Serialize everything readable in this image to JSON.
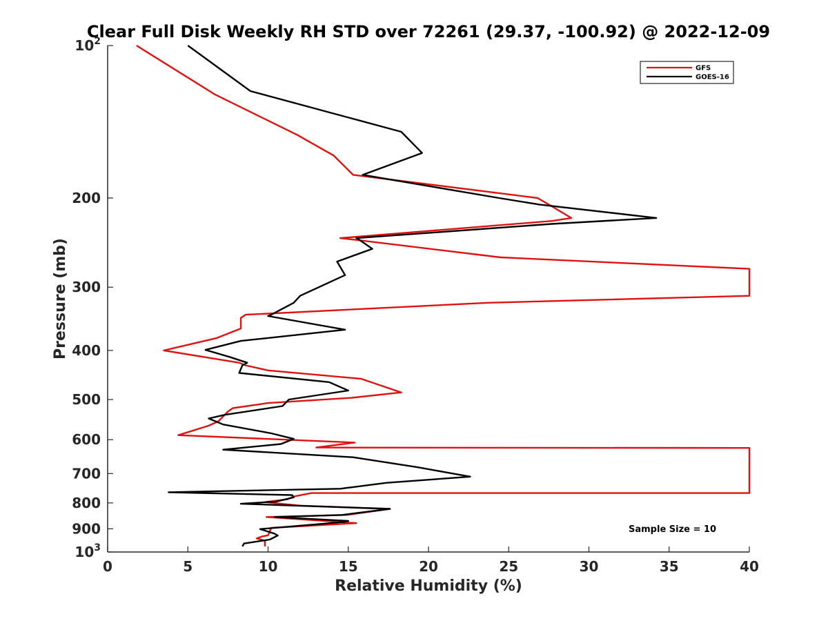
{
  "chart_data": {
    "type": "line",
    "title": "Clear Full Disk Weekly RH STD over 72261 (29.37, -100.92) @ 2022-12-09",
    "xlabel": "Relative Humidity (%)",
    "ylabel": "Pressure (mb)",
    "xlim": [
      0,
      40
    ],
    "ylim": [
      100,
      1000
    ],
    "y_scale": "log",
    "y_reversed": true,
    "x_ticks": [
      0,
      5,
      10,
      15,
      20,
      25,
      30,
      35,
      40
    ],
    "x_tick_labels": [
      "0",
      "5",
      "10",
      "15",
      "20",
      "25",
      "30",
      "35",
      "40"
    ],
    "y_ticks": [
      100,
      200,
      300,
      400,
      500,
      600,
      700,
      800,
      900,
      1000
    ],
    "y_tick_labels": [
      {
        "base": "10",
        "exp": "2"
      },
      {
        "base": "200",
        "exp": ""
      },
      {
        "base": "300",
        "exp": ""
      },
      {
        "base": "400",
        "exp": ""
      },
      {
        "base": "500",
        "exp": ""
      },
      {
        "base": "600",
        "exp": ""
      },
      {
        "base": "700",
        "exp": ""
      },
      {
        "base": "800",
        "exp": ""
      },
      {
        "base": "900",
        "exp": ""
      },
      {
        "base": "10",
        "exp": "3"
      }
    ],
    "grid": false,
    "legend_position": "top-right",
    "annotation": "Sample Size = 10",
    "series": [
      {
        "name": "GFS",
        "color": "#e0110f",
        "points": [
          [
            1.8,
            100
          ],
          [
            6.7,
            125
          ],
          [
            11.8,
            150
          ],
          [
            14.1,
            165
          ],
          [
            15.3,
            180
          ],
          [
            26.8,
            200
          ],
          [
            27.5,
            206
          ],
          [
            28.9,
            219
          ],
          [
            27.7,
            222
          ],
          [
            14.5,
            240
          ],
          [
            15.5,
            242
          ],
          [
            24.5,
            262
          ],
          [
            40.0,
            276
          ],
          [
            40.0,
            276
          ],
          [
            40.0,
            312
          ],
          [
            23.7,
            322
          ],
          [
            8.6,
            340
          ],
          [
            8.3,
            345
          ],
          [
            8.3,
            362
          ],
          [
            6.8,
            378
          ],
          [
            3.5,
            400
          ],
          [
            8.2,
            423
          ],
          [
            8.6,
            428
          ],
          [
            10.0,
            438
          ],
          [
            15.8,
            455
          ],
          [
            18.3,
            484
          ],
          [
            15.2,
            496
          ],
          [
            10.0,
            508
          ],
          [
            7.8,
            520
          ],
          [
            7.5,
            528
          ],
          [
            6.9,
            552
          ],
          [
            6.3,
            563
          ],
          [
            4.4,
            588
          ],
          [
            15.4,
            608
          ],
          [
            13.0,
            622
          ],
          [
            40.0,
            623
          ],
          [
            40.0,
            623
          ],
          [
            40.0,
            765
          ],
          [
            12.7,
            765
          ],
          [
            11.6,
            777
          ],
          [
            11.2,
            787
          ],
          [
            9.8,
            797
          ],
          [
            12.0,
            810
          ],
          [
            17.6,
            822
          ],
          [
            14.9,
            845
          ],
          [
            9.9,
            853
          ],
          [
            13.5,
            868
          ],
          [
            15.5,
            877
          ],
          [
            10.2,
            896
          ],
          [
            10.0,
            927
          ],
          [
            9.6,
            932
          ],
          [
            9.3,
            940
          ],
          [
            9.8,
            950
          ],
          [
            9.8,
            967
          ],
          [
            9.8,
            975
          ]
        ]
      },
      {
        "name": "GOES-16",
        "color": "#000000",
        "points": [
          [
            5.0,
            100
          ],
          [
            8.9,
            123
          ],
          [
            18.3,
            148
          ],
          [
            19.6,
            163
          ],
          [
            15.9,
            180
          ],
          [
            24.4,
            200
          ],
          [
            26.9,
            206
          ],
          [
            34.2,
            219
          ],
          [
            27.7,
            225
          ],
          [
            15.5,
            240
          ],
          [
            15.7,
            242
          ],
          [
            16.5,
            252
          ],
          [
            14.3,
            267
          ],
          [
            14.8,
            284
          ],
          [
            12.0,
            312
          ],
          [
            11.6,
            322
          ],
          [
            10.2,
            340
          ],
          [
            10.0,
            342
          ],
          [
            14.8,
            364
          ],
          [
            8.3,
            383
          ],
          [
            6.1,
            399
          ],
          [
            7.6,
            412
          ],
          [
            8.7,
            423
          ],
          [
            8.4,
            428
          ],
          [
            8.2,
            443
          ],
          [
            13.8,
            462
          ],
          [
            15.0,
            480
          ],
          [
            11.3,
            500
          ],
          [
            10.9,
            515
          ],
          [
            7.3,
            536
          ],
          [
            6.3,
            545
          ],
          [
            7.2,
            560
          ],
          [
            10.2,
            583
          ],
          [
            11.6,
            598
          ],
          [
            10.8,
            612
          ],
          [
            7.2,
            628
          ],
          [
            15.3,
            650
          ],
          [
            19.3,
            680
          ],
          [
            22.6,
            710
          ],
          [
            17.4,
            730
          ],
          [
            14.5,
            750
          ],
          [
            3.8,
            762
          ],
          [
            11.5,
            772
          ],
          [
            11.6,
            780
          ],
          [
            10.5,
            795
          ],
          [
            8.3,
            803
          ],
          [
            17.6,
            822
          ],
          [
            14.6,
            845
          ],
          [
            10.4,
            853
          ],
          [
            15.0,
            868
          ],
          [
            14.8,
            872
          ],
          [
            9.5,
            901
          ],
          [
            10.4,
            920
          ],
          [
            10.6,
            928
          ],
          [
            10.1,
            945
          ],
          [
            8.5,
            962
          ],
          [
            8.4,
            975
          ]
        ]
      }
    ]
  }
}
